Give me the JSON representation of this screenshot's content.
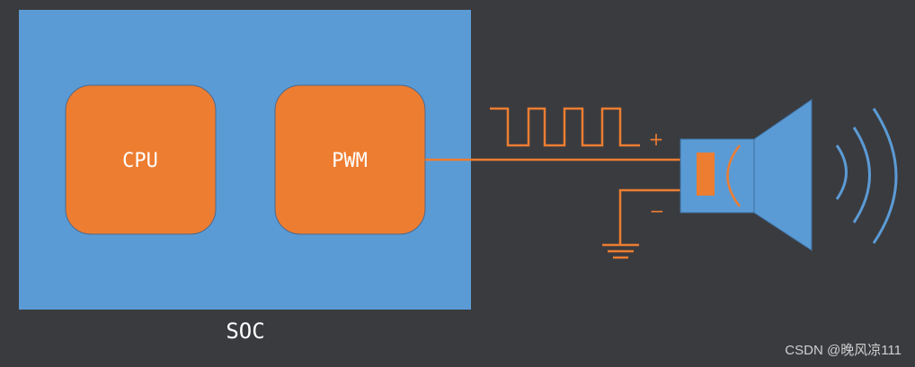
{
  "colors": {
    "background": "#3a3b3f",
    "soc_fill": "#5b9bd5",
    "block_fill": "#ed7d31",
    "wire": "#ed7d31",
    "speaker_fill": "#5b9bd5",
    "sound_wave": "#5b9bd5",
    "text": "#ffffff"
  },
  "soc": {
    "label": "SOC",
    "cpu_label": "CPU",
    "pwm_label": "PWM"
  },
  "signal": {
    "plus_label": "+",
    "minus_label": "−"
  },
  "icons": {
    "ground": "ground-symbol-icon",
    "speaker": "speaker-icon",
    "waveform": "square-wave-icon",
    "sound": "sound-wave-icon"
  },
  "watermark": "CSDN @晚风凉111"
}
